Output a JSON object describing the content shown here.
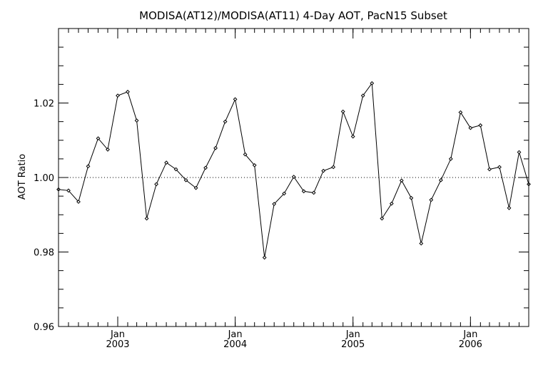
{
  "chart_data": {
    "type": "line",
    "title": "MODISA(AT12)/MODISA(AT11) 4-Day AOT, PacN15 Subset",
    "xlabel": "",
    "ylabel": "AOT Ratio",
    "ylim": [
      0.96,
      1.04
    ],
    "xlim": [
      "2002-07-01",
      "2006-07-01"
    ],
    "yticks": [
      "0.96",
      "0.98",
      "1.00",
      "1.02"
    ],
    "xticks": [
      {
        "month": "Jan",
        "year": "2003",
        "date": "2003-01-01"
      },
      {
        "month": "Jan",
        "year": "2004",
        "date": "2004-01-01"
      },
      {
        "month": "Jan",
        "year": "2005",
        "date": "2005-01-01"
      },
      {
        "month": "Jan",
        "year": "2006",
        "date": "2006-01-01"
      }
    ],
    "reference_line": 1.0,
    "grid": false,
    "series": [
      {
        "x": [
          "2002-07-01",
          "2002-08-01",
          "2002-09-01",
          "2002-10-01",
          "2002-11-01",
          "2002-12-01",
          "2003-01-01",
          "2003-02-01",
          "2003-03-01",
          "2003-04-01",
          "2003-05-01",
          "2003-06-01",
          "2003-07-01",
          "2003-08-01",
          "2003-09-01",
          "2003-10-01",
          "2003-11-01",
          "2003-12-01",
          "2004-01-01",
          "2004-02-01",
          "2004-03-01",
          "2004-04-01",
          "2004-05-01",
          "2004-06-01",
          "2004-07-01",
          "2004-08-01",
          "2004-09-01",
          "2004-10-01",
          "2004-11-01",
          "2004-12-01",
          "2005-01-01",
          "2005-02-01",
          "2005-03-01",
          "2005-04-01",
          "2005-05-01",
          "2005-06-01",
          "2005-07-01",
          "2005-08-01",
          "2005-09-01",
          "2005-10-01",
          "2005-11-01",
          "2005-12-01",
          "2006-01-01",
          "2006-02-01",
          "2006-03-01",
          "2006-04-01",
          "2006-05-01",
          "2006-06-01",
          "2006-07-01"
        ],
        "y": [
          0.9968,
          0.9965,
          0.9935,
          1.003,
          1.0105,
          1.0075,
          1.022,
          1.023,
          1.0153,
          0.989,
          0.9982,
          1.004,
          1.0022,
          0.9993,
          0.9972,
          1.0026,
          1.0079,
          1.015,
          1.021,
          1.0062,
          1.0033,
          0.9785,
          0.9929,
          0.9957,
          1.0002,
          0.9963,
          0.9959,
          1.0018,
          1.0028,
          1.0177,
          1.011,
          1.022,
          1.0253,
          0.989,
          0.993,
          0.9992,
          0.9945,
          0.9823,
          0.994,
          0.9993,
          1.005,
          1.0175,
          1.0133,
          1.014,
          1.0022,
          1.0028,
          0.9918,
          1.0068,
          0.9982
        ]
      }
    ]
  }
}
